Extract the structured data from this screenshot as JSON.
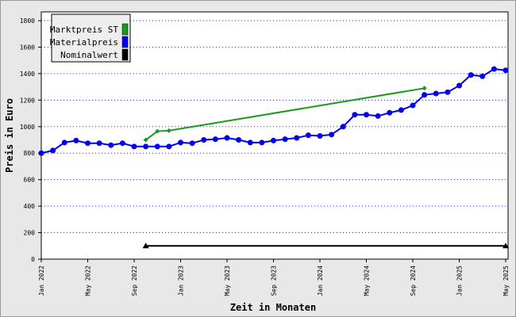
{
  "chart_data": {
    "type": "line",
    "x_label": "Zeit in Monaten",
    "y_label": "Preis in Euro",
    "xlim": [
      "2022-01",
      "2025-05"
    ],
    "xticks": [
      {
        "value": "2022-01",
        "label": "Jan 2022"
      },
      {
        "value": "2022-05",
        "label": "May 2022"
      },
      {
        "value": "2022-09",
        "label": "Sep 2022"
      },
      {
        "value": "2023-01",
        "label": "Jan 2023"
      },
      {
        "value": "2023-05",
        "label": "May 2023"
      },
      {
        "value": "2023-09",
        "label": "Sep 2023"
      },
      {
        "value": "2024-01",
        "label": "Jan 2024"
      },
      {
        "value": "2024-05",
        "label": "May 2024"
      },
      {
        "value": "2024-09",
        "label": "Sep 2024"
      },
      {
        "value": "2025-01",
        "label": "Jan 2025"
      },
      {
        "value": "2025-05",
        "label": "May 2025"
      }
    ],
    "ylim": [
      0,
      1866
    ],
    "yticks": [
      0,
      200,
      400,
      600,
      800,
      1000,
      1200,
      1400,
      1600,
      1800
    ],
    "grid": true,
    "legend": "upper left",
    "series": [
      {
        "name": "Marktpreis ST",
        "color": "#1a9a1a",
        "marker": "diamond",
        "x": [
          "2022-10",
          "2022-11",
          "2022-12",
          "2024-10"
        ],
        "values": [
          900,
          965,
          970,
          1290
        ]
      },
      {
        "name": "Materialpreis",
        "color": "#0000ee",
        "marker": "circle",
        "x": [
          "2022-01",
          "2022-02",
          "2022-03",
          "2022-04",
          "2022-05",
          "2022-06",
          "2022-07",
          "2022-08",
          "2022-09",
          "2022-10",
          "2022-11",
          "2022-12",
          "2023-01",
          "2023-02",
          "2023-03",
          "2023-04",
          "2023-05",
          "2023-06",
          "2023-07",
          "2023-08",
          "2023-09",
          "2023-10",
          "2023-11",
          "2023-12",
          "2024-01",
          "2024-02",
          "2024-03",
          "2024-04",
          "2024-05",
          "2024-06",
          "2024-07",
          "2024-08",
          "2024-09",
          "2024-10",
          "2024-11",
          "2024-12",
          "2025-01",
          "2025-02",
          "2025-03",
          "2025-04",
          "2025-05"
        ],
        "values": [
          800,
          820,
          880,
          895,
          875,
          875,
          860,
          875,
          850,
          850,
          850,
          850,
          880,
          875,
          900,
          905,
          915,
          900,
          880,
          880,
          895,
          905,
          915,
          935,
          930,
          940,
          1000,
          1090,
          1090,
          1080,
          1105,
          1125,
          1160,
          1240,
          1250,
          1260,
          1310,
          1390,
          1380,
          1435,
          1425
        ]
      },
      {
        "name": "Nominalwert",
        "color": "#000000",
        "marker": "triangle",
        "x": [
          "2022-10",
          "2025-05"
        ],
        "values": [
          100,
          100
        ]
      }
    ]
  }
}
